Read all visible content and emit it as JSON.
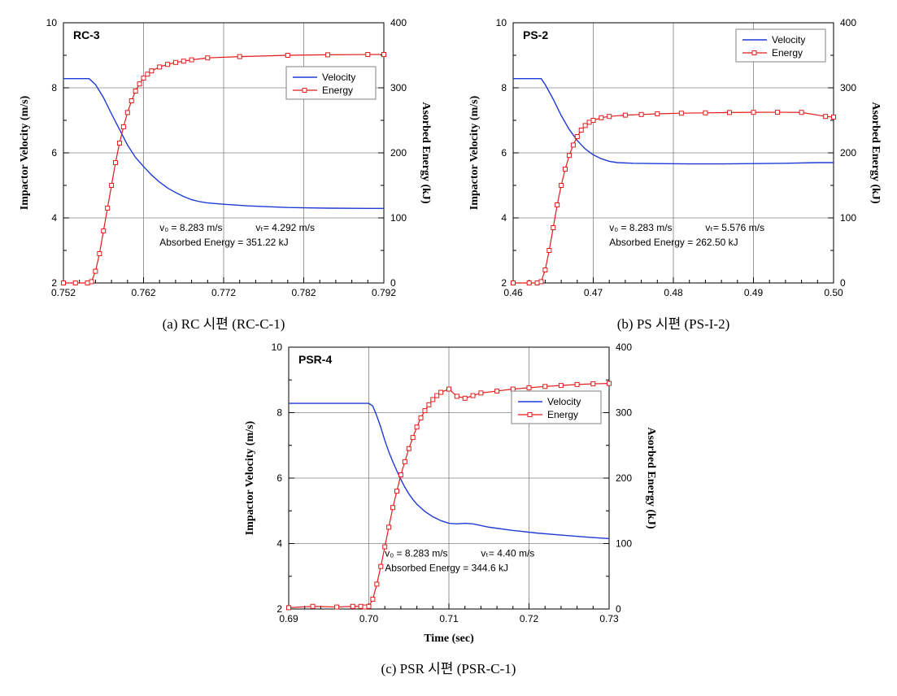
{
  "colors": {
    "velocity": "#1f3bd6",
    "energy": "#e11b1b",
    "grid": "#808080",
    "bg": "#ffffff",
    "axis": "#000000",
    "marker_fill": "#ffffff"
  },
  "common": {
    "y1_label": "Impactor Velocity (m/s)",
    "y2_label": "Asorbed Energy (kJ)",
    "x_label": "Time (sec)",
    "y1_lim": [
      2,
      10
    ],
    "y1_major": 2,
    "y1_minor": 1,
    "y2_lim": [
      0,
      400
    ],
    "y2_major": 100,
    "y2_minor": 50,
    "legend": {
      "velocity": "Velocity",
      "energy": "Energy"
    },
    "axis_label_fontsize": 14,
    "tick_fontsize": 12,
    "anno_fontsize": 12
  },
  "panels": [
    {
      "id": "a",
      "title": "RC-3",
      "caption": "(a) RC 시편 (RC-C-1)",
      "x_lim": [
        0.752,
        0.792
      ],
      "x_major": 0.01,
      "x_minor": 0.002,
      "x_decimals": 3,
      "anno": [
        "v₀ = 8.283 m/s",
        "vₜ= 4.292 m/s",
        "Absorbed Energy = 351.22 kJ"
      ],
      "legend_pos": "right-upper",
      "show_x_label": false,
      "velocity_points": [
        [
          0.752,
          8.283
        ],
        [
          0.7545,
          8.283
        ],
        [
          0.7552,
          8.283
        ],
        [
          0.756,
          8.1
        ],
        [
          0.757,
          7.7
        ],
        [
          0.758,
          7.2
        ],
        [
          0.759,
          6.72
        ],
        [
          0.76,
          6.24
        ],
        [
          0.761,
          5.86
        ],
        [
          0.762,
          5.58
        ],
        [
          0.763,
          5.32
        ],
        [
          0.764,
          5.1
        ],
        [
          0.765,
          4.92
        ],
        [
          0.766,
          4.78
        ],
        [
          0.767,
          4.66
        ],
        [
          0.768,
          4.56
        ],
        [
          0.769,
          4.5
        ],
        [
          0.77,
          4.46
        ],
        [
          0.772,
          4.42
        ],
        [
          0.775,
          4.37
        ],
        [
          0.78,
          4.32
        ],
        [
          0.785,
          4.3
        ],
        [
          0.79,
          4.292
        ],
        [
          0.792,
          4.292
        ]
      ],
      "energy_points": [
        [
          0.752,
          0
        ],
        [
          0.7535,
          0
        ],
        [
          0.755,
          0
        ],
        [
          0.7555,
          2
        ],
        [
          0.756,
          18
        ],
        [
          0.7565,
          45
        ],
        [
          0.757,
          80
        ],
        [
          0.7575,
          115
        ],
        [
          0.758,
          150
        ],
        [
          0.7585,
          185
        ],
        [
          0.759,
          215
        ],
        [
          0.7595,
          240
        ],
        [
          0.76,
          262
        ],
        [
          0.7605,
          280
        ],
        [
          0.761,
          295
        ],
        [
          0.7615,
          306
        ],
        [
          0.762,
          315
        ],
        [
          0.7625,
          321
        ],
        [
          0.763,
          326
        ],
        [
          0.764,
          332
        ],
        [
          0.765,
          336
        ],
        [
          0.766,
          339
        ],
        [
          0.767,
          341
        ],
        [
          0.768,
          343
        ],
        [
          0.77,
          346
        ],
        [
          0.774,
          348
        ],
        [
          0.78,
          350
        ],
        [
          0.785,
          350.8
        ],
        [
          0.79,
          351.2
        ],
        [
          0.792,
          351.22
        ]
      ]
    },
    {
      "id": "b",
      "title": "PS-2",
      "caption": "(b) PS 시편 (PS-I-2)",
      "x_lim": [
        0.46,
        0.5
      ],
      "x_major": 0.01,
      "x_minor": 0.002,
      "x_decimals": 2,
      "anno": [
        "v₀ = 8.283 m/s",
        "vₜ= 5.576 m/s",
        "Absorbed Energy = 262.50 kJ"
      ],
      "legend_pos": "right-top",
      "show_x_label": false,
      "velocity_points": [
        [
          0.46,
          8.283
        ],
        [
          0.463,
          8.283
        ],
        [
          0.4635,
          8.283
        ],
        [
          0.464,
          8.1
        ],
        [
          0.465,
          7.65
        ],
        [
          0.466,
          7.15
        ],
        [
          0.467,
          6.72
        ],
        [
          0.468,
          6.38
        ],
        [
          0.469,
          6.12
        ],
        [
          0.47,
          5.94
        ],
        [
          0.471,
          5.82
        ],
        [
          0.472,
          5.74
        ],
        [
          0.473,
          5.7
        ],
        [
          0.475,
          5.68
        ],
        [
          0.478,
          5.67
        ],
        [
          0.482,
          5.66
        ],
        [
          0.486,
          5.66
        ],
        [
          0.49,
          5.67
        ],
        [
          0.494,
          5.68
        ],
        [
          0.498,
          5.7
        ],
        [
          0.5,
          5.7
        ]
      ],
      "energy_points": [
        [
          0.46,
          0
        ],
        [
          0.462,
          0
        ],
        [
          0.463,
          0
        ],
        [
          0.4635,
          2
        ],
        [
          0.464,
          20
        ],
        [
          0.4645,
          50
        ],
        [
          0.465,
          85
        ],
        [
          0.4655,
          120
        ],
        [
          0.466,
          150
        ],
        [
          0.4665,
          175
        ],
        [
          0.467,
          196
        ],
        [
          0.4675,
          212
        ],
        [
          0.468,
          225
        ],
        [
          0.4685,
          235
        ],
        [
          0.469,
          242
        ],
        [
          0.4695,
          247
        ],
        [
          0.47,
          250
        ],
        [
          0.471,
          254
        ],
        [
          0.472,
          256
        ],
        [
          0.474,
          258
        ],
        [
          0.476,
          259
        ],
        [
          0.478,
          260
        ],
        [
          0.481,
          261
        ],
        [
          0.484,
          261.5
        ],
        [
          0.487,
          262
        ],
        [
          0.49,
          262.3
        ],
        [
          0.493,
          262.4
        ],
        [
          0.496,
          262.2
        ],
        [
          0.499,
          256
        ],
        [
          0.5,
          255
        ]
      ]
    },
    {
      "id": "c",
      "title": "PSR-4",
      "caption": "(c) PSR 시편 (PSR-C-1)",
      "x_lim": [
        0.69,
        0.73
      ],
      "x_major": 0.01,
      "x_minor": 0.002,
      "x_decimals": 2,
      "anno": [
        "v₀ = 8.283 m/s",
        "vₜ= 4.40 m/s",
        "Absorbed Energy = 344.6 kJ"
      ],
      "legend_pos": "right-upper",
      "show_x_label": true,
      "velocity_points": [
        [
          0.69,
          8.283
        ],
        [
          0.698,
          8.283
        ],
        [
          0.699,
          8.283
        ],
        [
          0.7,
          8.283
        ],
        [
          0.7005,
          8.2
        ],
        [
          0.701,
          7.9
        ],
        [
          0.7015,
          7.55
        ],
        [
          0.702,
          7.15
        ],
        [
          0.7025,
          6.8
        ],
        [
          0.703,
          6.5
        ],
        [
          0.7035,
          6.22
        ],
        [
          0.704,
          5.96
        ],
        [
          0.7045,
          5.72
        ],
        [
          0.705,
          5.52
        ],
        [
          0.7055,
          5.35
        ],
        [
          0.706,
          5.2
        ],
        [
          0.707,
          4.98
        ],
        [
          0.708,
          4.82
        ],
        [
          0.709,
          4.7
        ],
        [
          0.71,
          4.62
        ],
        [
          0.711,
          4.6
        ],
        [
          0.712,
          4.62
        ],
        [
          0.713,
          4.6
        ],
        [
          0.715,
          4.5
        ],
        [
          0.718,
          4.4
        ],
        [
          0.721,
          4.32
        ],
        [
          0.724,
          4.26
        ],
        [
          0.727,
          4.2
        ],
        [
          0.73,
          4.15
        ]
      ],
      "energy_points": [
        [
          0.69,
          2
        ],
        [
          0.693,
          4
        ],
        [
          0.696,
          3
        ],
        [
          0.698,
          4
        ],
        [
          0.699,
          4
        ],
        [
          0.6995,
          3
        ],
        [
          0.7,
          4
        ],
        [
          0.7005,
          15
        ],
        [
          0.701,
          38
        ],
        [
          0.7015,
          65
        ],
        [
          0.702,
          95
        ],
        [
          0.7025,
          125
        ],
        [
          0.703,
          155
        ],
        [
          0.7035,
          180
        ],
        [
          0.704,
          205
        ],
        [
          0.7045,
          225
        ],
        [
          0.705,
          245
        ],
        [
          0.7055,
          262
        ],
        [
          0.706,
          278
        ],
        [
          0.7065,
          292
        ],
        [
          0.707,
          303
        ],
        [
          0.7075,
          312
        ],
        [
          0.708,
          320
        ],
        [
          0.7085,
          326
        ],
        [
          0.709,
          331
        ],
        [
          0.71,
          336
        ],
        [
          0.711,
          325
        ],
        [
          0.712,
          322
        ],
        [
          0.713,
          326
        ],
        [
          0.714,
          330
        ],
        [
          0.716,
          333
        ],
        [
          0.718,
          336
        ],
        [
          0.72,
          338
        ],
        [
          0.722,
          340
        ],
        [
          0.724,
          341.5
        ],
        [
          0.726,
          343
        ],
        [
          0.728,
          344
        ],
        [
          0.73,
          344.6
        ]
      ]
    }
  ]
}
